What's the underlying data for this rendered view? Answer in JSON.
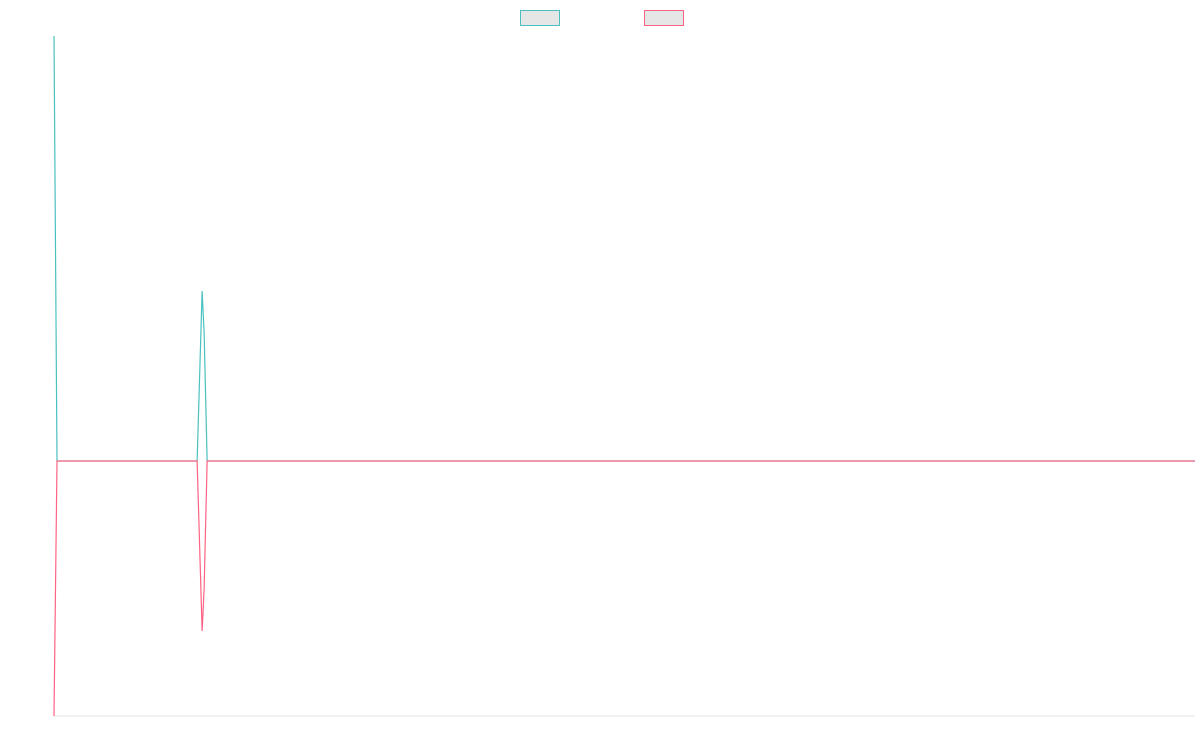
{
  "chart_data": {
    "type": "line",
    "x": [
      0,
      0.6,
      28.6,
      29.6,
      30,
      30.6,
      228
    ],
    "series": [
      {
        "color": "#4bc0c0",
        "values": [
          2.5,
          0,
          0,
          1,
          0.75,
          0,
          0
        ]
      },
      {
        "color": "#ff6384",
        "values": [
          -1.5,
          0,
          0,
          -1,
          -0.75,
          0,
          0
        ]
      }
    ],
    "xlim": [
      0,
      228
    ],
    "ylim": [
      -1.5,
      2.5
    ],
    "legend": "top"
  }
}
